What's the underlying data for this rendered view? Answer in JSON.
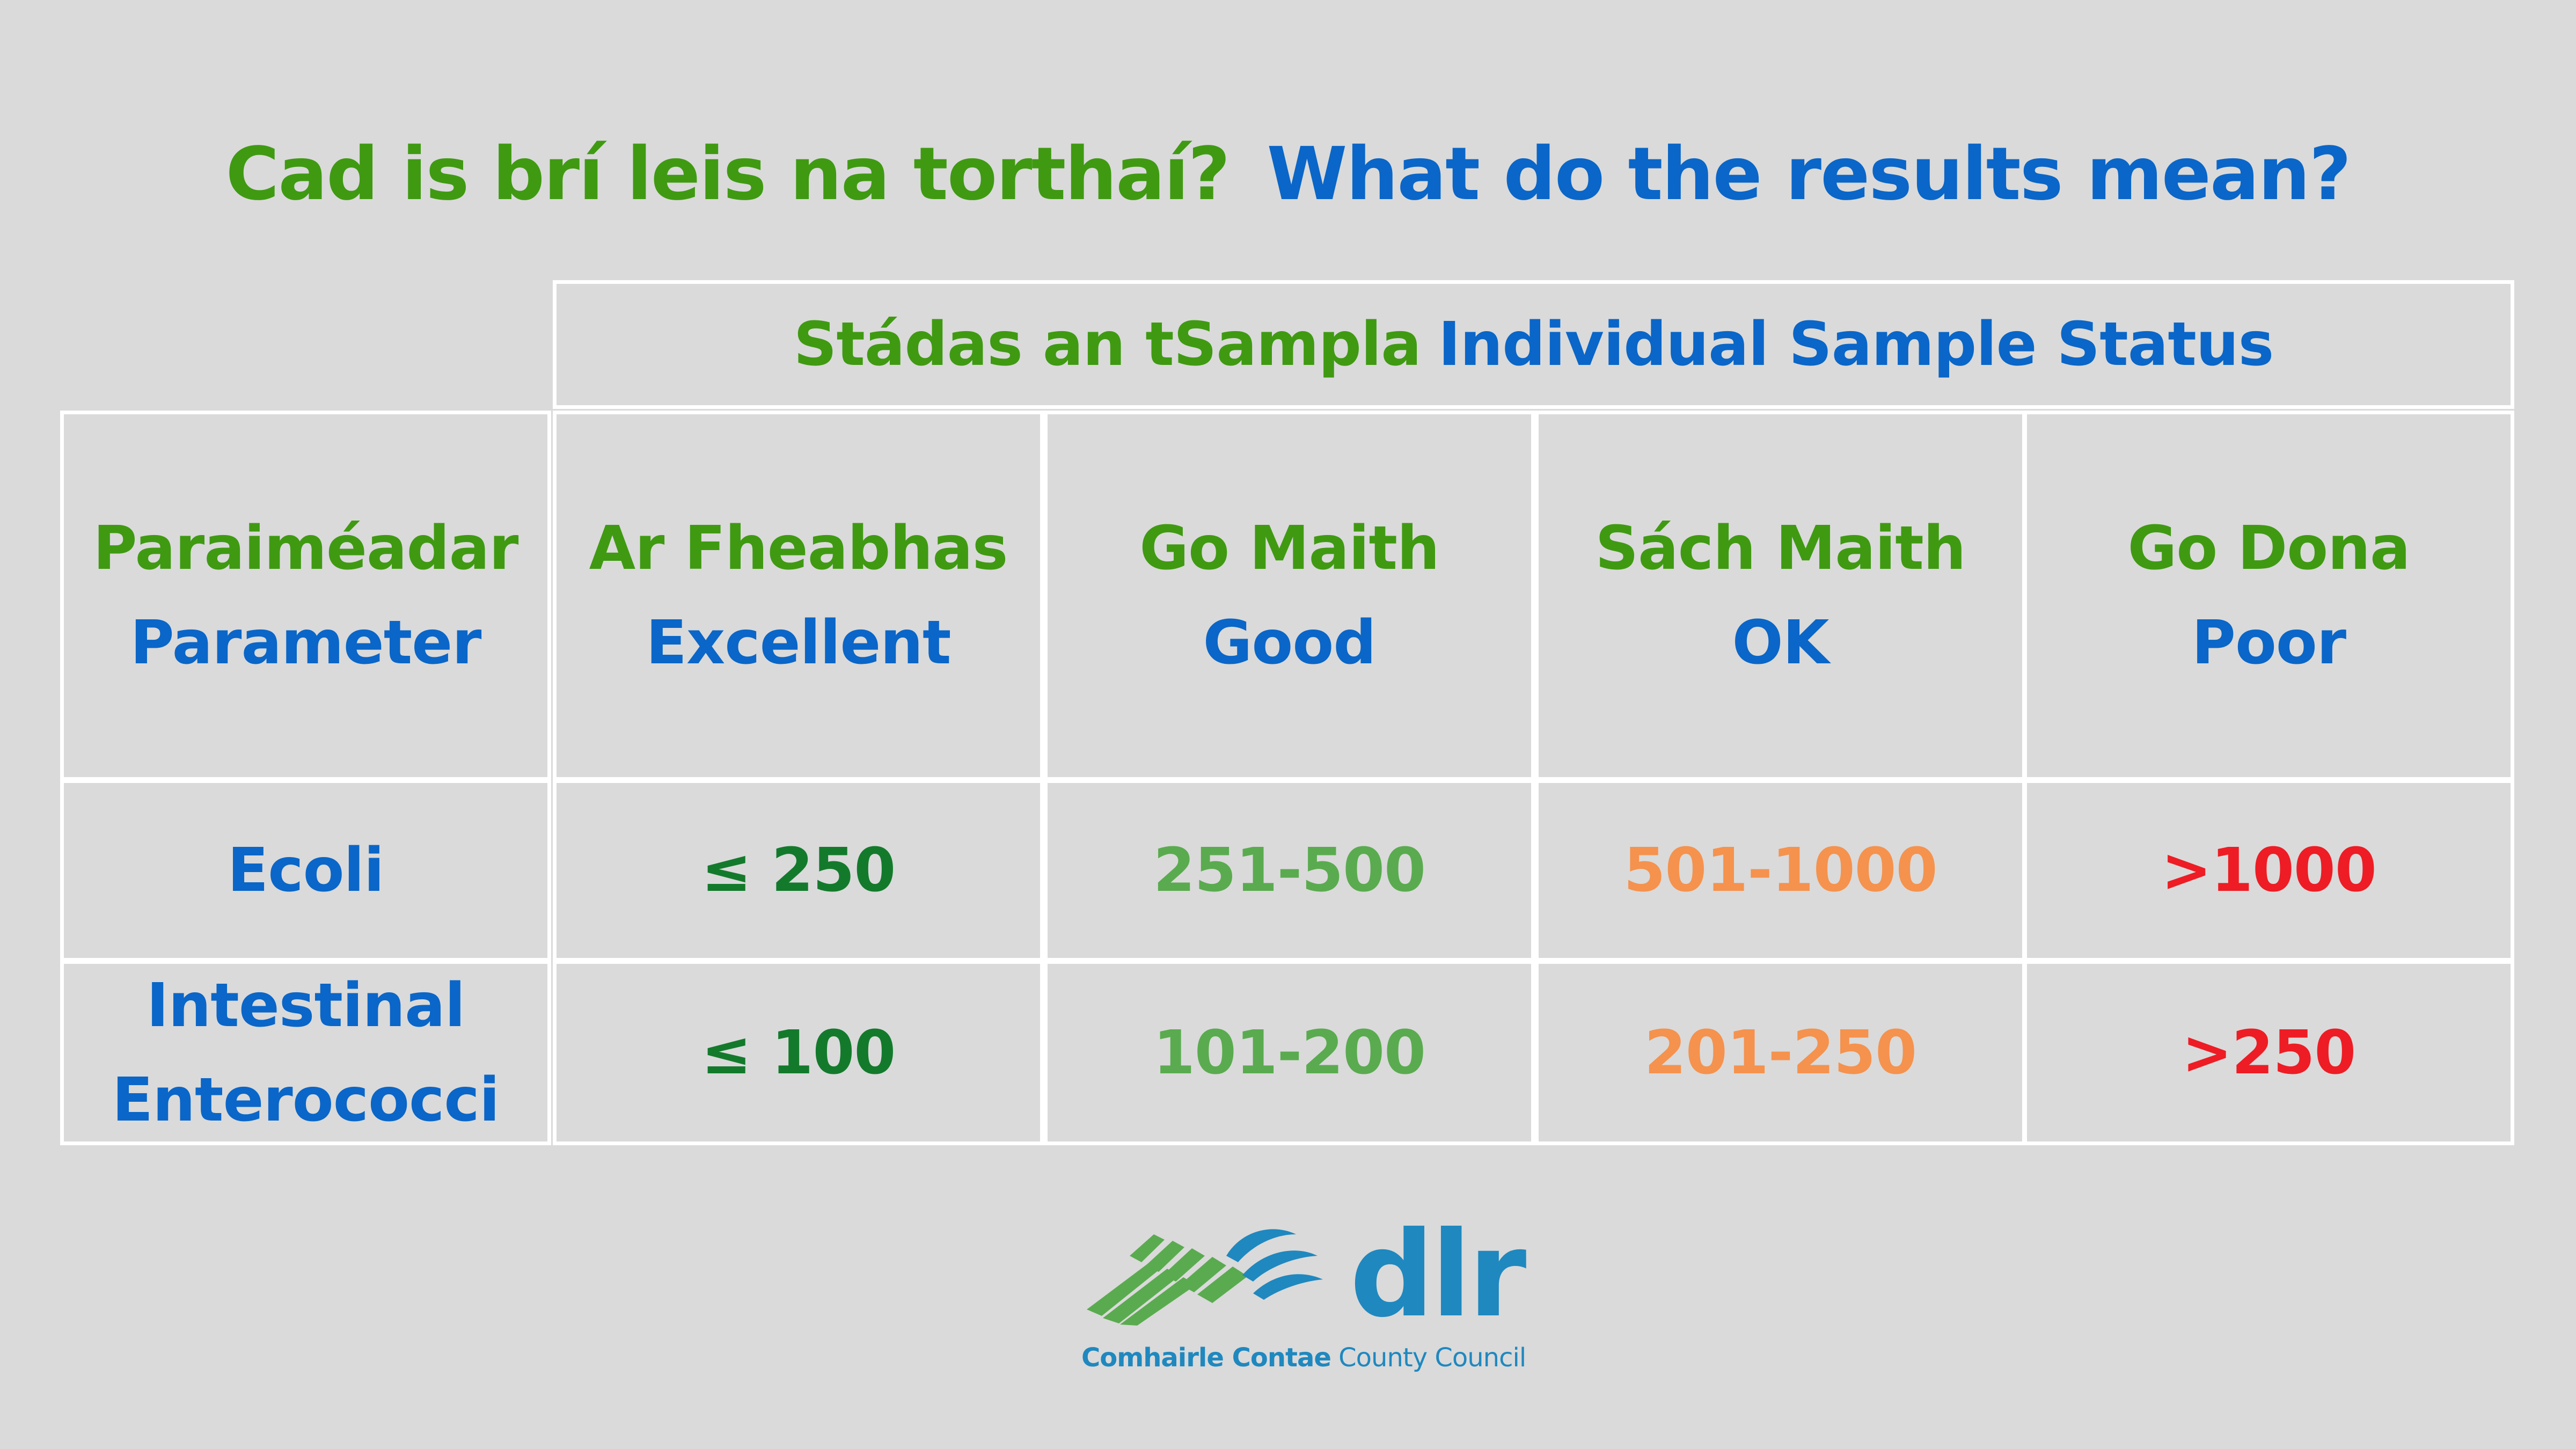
{
  "title": {
    "irish": "Cad is brí leis na torthaí?",
    "english": "What do the results mean?"
  },
  "table": {
    "group_header": {
      "irish": "Stádas an tSampla",
      "english": "Individual Sample Status"
    },
    "columns": [
      {
        "irish": "Paraiméadar",
        "english": "Parameter"
      },
      {
        "irish": "Ar Fheabhas",
        "english": "Excellent"
      },
      {
        "irish": "Go Maith",
        "english": "Good"
      },
      {
        "irish": "Sách Maith",
        "english": "OK"
      },
      {
        "irish": "Go Dona",
        "english": "Poor"
      }
    ],
    "rows": [
      {
        "parameter": [
          "Ecoli"
        ],
        "values": [
          "≤ 250",
          "251-500",
          "501-1000",
          ">1000"
        ]
      },
      {
        "parameter": [
          "Intestinal",
          "Enterococci"
        ],
        "values": [
          "≤ 100",
          "101-200",
          "201-250",
          ">250"
        ]
      }
    ]
  },
  "colors": {
    "background": "#dadada",
    "irish_text": "#3f9a12",
    "english_text": "#0a66c8",
    "excellent": "#137a2c",
    "good": "#5aab4f",
    "ok": "#f5924d",
    "poor": "#ee1c24",
    "grid_lines": "#ffffff",
    "logo_blue": "#1f88bf",
    "logo_green": "#5aab4f"
  },
  "logo": {
    "wordmark": "dlr",
    "subtitle_bold": "Comhairle Contae",
    "subtitle_regular": "County Council"
  }
}
